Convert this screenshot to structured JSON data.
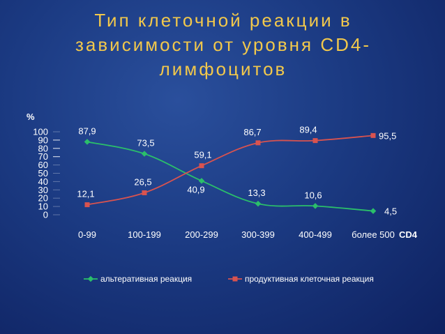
{
  "title": "Тип клеточной реакции в зависимости от уровня CD4-лимфоцитов",
  "chart_data": {
    "type": "line",
    "title": "",
    "ylabel": "%",
    "xlabel": "CD4",
    "ylim": [
      0,
      100
    ],
    "yticks": [
      0,
      10,
      20,
      30,
      40,
      50,
      60,
      70,
      80,
      90,
      100
    ],
    "categories": [
      "0-99",
      "100-199",
      "200-299",
      "300-399",
      "400-499",
      "более 500"
    ],
    "series": [
      {
        "name": "альтеративная реакция",
        "color": "#2bbf6a",
        "marker": "diamond",
        "values": [
          87.9,
          73.5,
          40.9,
          13.3,
          10.6,
          4.5
        ],
        "labels": [
          "87,9",
          "73,5",
          "40,9",
          "13,3",
          "10,6",
          "4,5"
        ]
      },
      {
        "name": "продуктивная клеточная реакция",
        "color": "#d9534f",
        "marker": "square",
        "values": [
          12.1,
          26.5,
          59.1,
          86.7,
          89.4,
          95.5
        ],
        "labels": [
          "12,1",
          "26,5",
          "59,1",
          "86,7",
          "89,4",
          "95,5"
        ]
      }
    ],
    "legend": "bottom"
  }
}
